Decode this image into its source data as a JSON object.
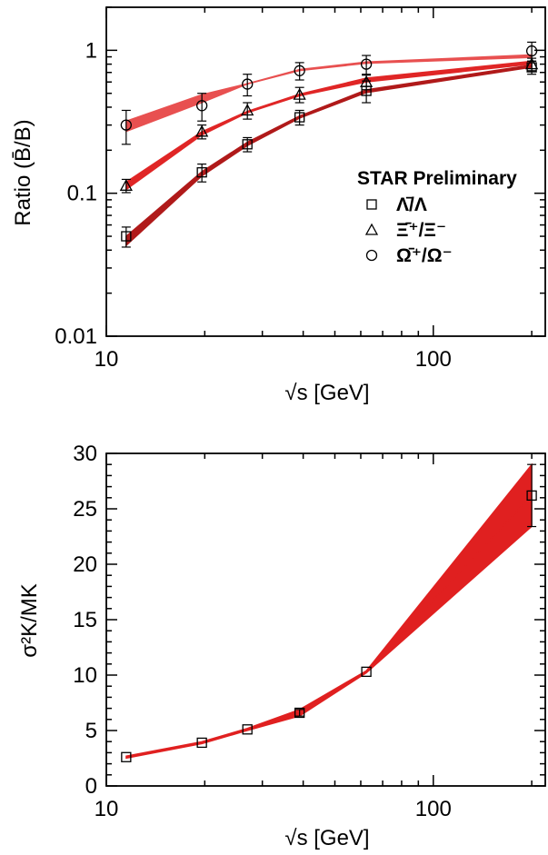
{
  "chart_data": [
    {
      "type": "line",
      "xscale": "log",
      "yscale": "log",
      "xlim": [
        10,
        220
      ],
      "ylim": [
        0.01,
        2
      ],
      "xlabel": "√s [GeV]",
      "ylabel": "Ratio (B̄/B)",
      "x_ticklabels": [
        "10",
        "100"
      ],
      "y_ticklabels": [
        "0.01",
        "0.1",
        "1"
      ],
      "annotation": "STAR Preliminary",
      "legend_position": "right-middle",
      "colors": [
        "#b01a1a",
        "#e02626",
        "#e85050"
      ],
      "series": [
        {
          "name": "Λ̄/Λ",
          "marker": "square",
          "x": [
            11.5,
            19.6,
            27,
            39,
            62.4,
            200
          ],
          "y": [
            0.05,
            0.14,
            0.22,
            0.34,
            0.52,
            0.76
          ],
          "err": [
            0.008,
            0.02,
            0.025,
            0.04,
            0.09,
            0.08
          ],
          "band_low": [
            0.043,
            0.132,
            0.215,
            0.335,
            0.505,
            0.76
          ],
          "band_high": [
            0.05,
            0.142,
            0.228,
            0.348,
            0.53,
            0.79
          ]
        },
        {
          "name": "Ξ̄⁺/Ξ⁻",
          "marker": "triangle",
          "x": [
            11.5,
            19.6,
            27,
            39,
            62.4,
            200
          ],
          "y": [
            0.113,
            0.27,
            0.38,
            0.49,
            0.6,
            0.8
          ],
          "err": [
            0.012,
            0.03,
            0.05,
            0.06,
            0.07,
            0.08
          ],
          "band_low": [
            0.106,
            0.255,
            0.365,
            0.48,
            0.6,
            0.8
          ],
          "band_high": [
            0.12,
            0.27,
            0.375,
            0.495,
            0.64,
            0.84
          ]
        },
        {
          "name": "Ω̄⁺/Ω⁻",
          "marker": "circle",
          "x": [
            11.5,
            19.6,
            27,
            39,
            62.4,
            200
          ],
          "y": [
            0.3,
            0.41,
            0.58,
            0.72,
            0.8,
            0.99
          ],
          "err": [
            0.08,
            0.09,
            0.1,
            0.1,
            0.12,
            0.15
          ],
          "band_low": [
            0.27,
            0.43,
            0.58,
            0.72,
            0.81,
            0.89
          ],
          "band_high": [
            0.32,
            0.49,
            0.585,
            0.735,
            0.83,
            0.93
          ]
        }
      ]
    },
    {
      "type": "line",
      "xscale": "log",
      "xlim": [
        10,
        220
      ],
      "ylim": [
        0,
        30
      ],
      "xlabel": "√s [GeV]",
      "ylabel": "σ²K/MK",
      "x_ticklabels": [
        "10",
        "100"
      ],
      "y_ticklabels": [
        "0",
        "5",
        "10",
        "15",
        "20",
        "25",
        "30"
      ],
      "colors": [
        "#e02020"
      ],
      "series": [
        {
          "marker": "square",
          "x": [
            11.5,
            19.6,
            27,
            39,
            62.4,
            200
          ],
          "y": [
            2.6,
            3.9,
            5.1,
            6.6,
            10.3,
            26.2
          ],
          "err": [
            0,
            0,
            0,
            0.3,
            0,
            2.8
          ],
          "band_low": [
            2.5,
            3.8,
            5.0,
            6.3,
            10.2,
            23.4
          ],
          "band_high": [
            2.7,
            4.0,
            5.2,
            6.9,
            10.4,
            29.0
          ]
        }
      ]
    }
  ]
}
